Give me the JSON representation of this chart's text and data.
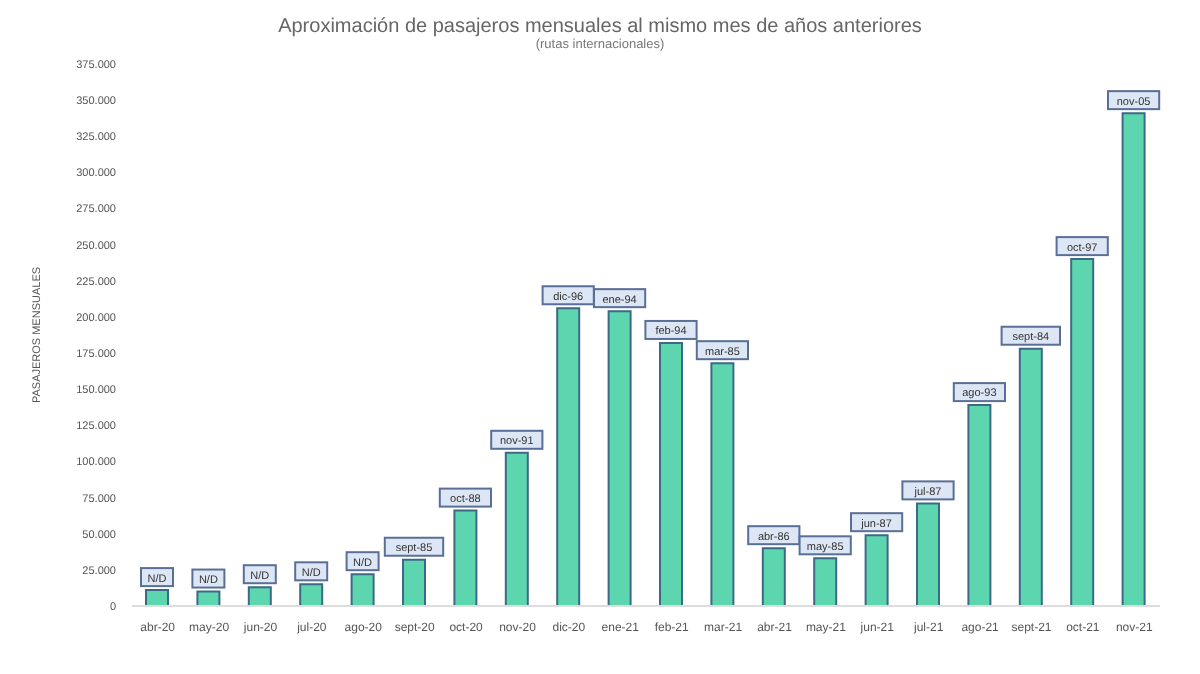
{
  "chart_data": {
    "type": "bar",
    "title": "Aproximación de pasajeros mensuales al mismo mes de años anteriores",
    "subtitle": "(rutas internacionales)",
    "ylabel": "PASAJEROS MENSUALES",
    "categories": [
      "abr-20",
      "may-20",
      "jun-20",
      "jul-20",
      "ago-20",
      "sept-20",
      "oct-20",
      "nov-20",
      "dic-20",
      "ene-21",
      "feb-21",
      "mar-21",
      "abr-21",
      "may-21",
      "jun-21",
      "jul-21",
      "ago-21",
      "sept-21",
      "oct-21",
      "nov-21"
    ],
    "values": [
      11000,
      10000,
      13000,
      15000,
      22000,
      32000,
      66000,
      106000,
      206000,
      204000,
      182000,
      168000,
      40000,
      33000,
      49000,
      71000,
      139000,
      178000,
      240000,
      341000
    ],
    "value_labels": [
      "N/D",
      "N/D",
      "N/D",
      "N/D",
      "N/D",
      "sept-85",
      "oct-88",
      "nov-91",
      "dic-96",
      "ene-94",
      "feb-94",
      "mar-85",
      "abr-86",
      "may-85",
      "jun-87",
      "jul-87",
      "ago-93",
      "sept-84",
      "oct-97",
      "nov-05"
    ],
    "color": "#5dd6b0",
    "ylim": [
      0,
      375000
    ],
    "yticks": [
      {
        "value": 0,
        "label": "0"
      },
      {
        "value": 25000,
        "label": "25.000"
      },
      {
        "value": 50000,
        "label": "50.000"
      },
      {
        "value": 75000,
        "label": "75.000"
      },
      {
        "value": 100000,
        "label": "100.000"
      },
      {
        "value": 125000,
        "label": "125.000"
      },
      {
        "value": 150000,
        "label": "150.000"
      },
      {
        "value": 175000,
        "label": "175.000"
      },
      {
        "value": 200000,
        "label": "200.000"
      },
      {
        "value": 225000,
        "label": "225.000"
      },
      {
        "value": 250000,
        "label": "250.000"
      },
      {
        "value": 275000,
        "label": "275.000"
      },
      {
        "value": 300000,
        "label": "300.000"
      },
      {
        "value": 325000,
        "label": "325.000"
      },
      {
        "value": 350000,
        "label": "350.000"
      },
      {
        "value": 375000,
        "label": "375.000"
      }
    ],
    "grid": false,
    "legend": false
  }
}
